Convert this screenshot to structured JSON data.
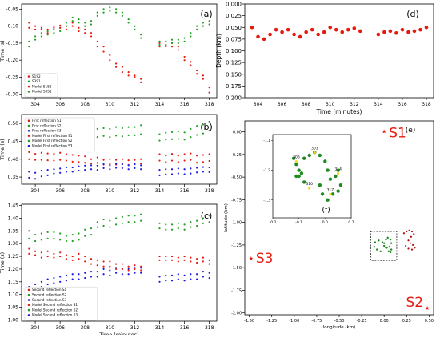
{
  "chart_data": [
    {
      "panel": "(a)",
      "type": "scatter",
      "ylabel": "Time (s)",
      "xlabel": "",
      "xlim": [
        302.9,
        318.6
      ],
      "ylim": [
        -0.31,
        -0.035
      ],
      "xticks": [
        304,
        306,
        308,
        310,
        312,
        314,
        316,
        318
      ],
      "yticks": [
        -0.3,
        -0.25,
        -0.2,
        -0.15,
        -0.1,
        -0.05
      ],
      "x": [
        303.5,
        304,
        304.5,
        305,
        305.5,
        306,
        306.5,
        307,
        307.5,
        308,
        308.5,
        309,
        309.5,
        310,
        310.5,
        311,
        311.5,
        312,
        312.5,
        314,
        314.5,
        315,
        315.5,
        316,
        316.5,
        317,
        317.5,
        318
      ],
      "series": [
        {
          "name": "S1S2",
          "color": "#e8190f",
          "values": [
            -0.09,
            -0.1,
            -0.105,
            -0.11,
            -0.1,
            -0.098,
            -0.1,
            -0.09,
            -0.105,
            -0.11,
            -0.12,
            -0.145,
            -0.16,
            -0.185,
            -0.21,
            -0.22,
            -0.235,
            -0.245,
            -0.255,
            -0.15,
            -0.155,
            -0.15,
            -0.16,
            -0.19,
            -0.205,
            -0.23,
            -0.245,
            -0.28
          ]
        },
        {
          "name": "S3S1",
          "color": "#1fa01f",
          "values": [
            -0.145,
            -0.13,
            -0.12,
            -0.115,
            -0.11,
            -0.105,
            -0.09,
            -0.075,
            -0.08,
            -0.09,
            -0.085,
            -0.06,
            -0.05,
            -0.045,
            -0.05,
            -0.06,
            -0.08,
            -0.1,
            -0.125,
            -0.145,
            -0.145,
            -0.14,
            -0.14,
            -0.135,
            -0.12,
            -0.1,
            -0.09,
            -0.085
          ]
        },
        {
          "name": "Model S1S2",
          "color": "#e8190f",
          "values": [
            -0.105,
            -0.11,
            -0.11,
            -0.12,
            -0.105,
            -0.105,
            -0.11,
            -0.1,
            -0.115,
            -0.12,
            -0.13,
            -0.16,
            -0.175,
            -0.2,
            -0.22,
            -0.235,
            -0.245,
            -0.25,
            -0.265,
            -0.16,
            -0.16,
            -0.16,
            -0.17,
            -0.2,
            -0.215,
            -0.24,
            -0.255,
            -0.295
          ]
        },
        {
          "name": "Model S3S1",
          "color": "#1fa01f",
          "values": [
            -0.16,
            -0.14,
            -0.13,
            -0.125,
            -0.12,
            -0.115,
            -0.1,
            -0.085,
            -0.09,
            -0.1,
            -0.095,
            -0.07,
            -0.06,
            -0.055,
            -0.06,
            -0.07,
            -0.09,
            -0.11,
            -0.135,
            -0.155,
            -0.155,
            -0.15,
            -0.15,
            -0.145,
            -0.13,
            -0.11,
            -0.1,
            -0.095
          ]
        }
      ]
    },
    {
      "panel": "(b)",
      "type": "scatter",
      "ylabel": "Time (s)",
      "xlabel": "",
      "xlim": [
        302.9,
        318.6
      ],
      "ylim": [
        0.33,
        0.525
      ],
      "xticks": [
        304,
        306,
        308,
        310,
        312,
        314,
        316,
        318
      ],
      "yticks": [
        0.35,
        0.4,
        0.45,
        0.5
      ],
      "x": [
        303.5,
        304,
        304.5,
        305,
        305.5,
        306,
        306.5,
        307,
        307.5,
        308,
        308.5,
        309,
        309.5,
        310,
        310.5,
        311,
        311.5,
        312,
        312.5,
        314,
        314.5,
        315,
        315.5,
        316,
        316.5,
        317,
        317.5,
        318
      ],
      "series": [
        {
          "name": "First reflection S1",
          "color": "#e8190f",
          "values": [
            0.42,
            0.415,
            0.418,
            0.416,
            0.415,
            0.418,
            0.414,
            0.412,
            0.41,
            0.408,
            0.4,
            0.405,
            0.398,
            0.4,
            0.398,
            0.4,
            0.397,
            0.398,
            0.4,
            0.414,
            0.41,
            0.415,
            0.41,
            0.414,
            0.416,
            0.41,
            0.412,
            0.414
          ]
        },
        {
          "name": "First reflection S2",
          "color": "#1fa01f",
          "values": [
            0.465,
            0.46,
            0.465,
            0.463,
            0.462,
            0.465,
            0.466,
            0.465,
            0.468,
            0.47,
            0.47,
            0.485,
            0.487,
            0.485,
            0.49,
            0.487,
            0.49,
            0.49,
            0.495,
            0.47,
            0.474,
            0.476,
            0.478,
            0.475,
            0.485,
            0.493,
            0.497,
            0.505
          ]
        },
        {
          "name": "First reflection S3",
          "color": "#1a1ae6",
          "values": [
            0.348,
            0.345,
            0.352,
            0.355,
            0.36,
            0.362,
            0.365,
            0.365,
            0.368,
            0.37,
            0.372,
            0.37,
            0.375,
            0.372,
            0.376,
            0.375,
            0.372,
            0.375,
            0.372,
            0.355,
            0.358,
            0.358,
            0.36,
            0.358,
            0.36,
            0.363,
            0.365,
            0.364
          ]
        },
        {
          "name": "Model First reflection S1",
          "color": "#e8190f",
          "values": [
            0.4,
            0.398,
            0.398,
            0.397,
            0.396,
            0.398,
            0.396,
            0.393,
            0.392,
            0.39,
            0.388,
            0.39,
            0.385,
            0.386,
            0.385,
            0.386,
            0.384,
            0.386,
            0.388,
            0.396,
            0.392,
            0.396,
            0.392,
            0.396,
            0.398,
            0.39,
            0.392,
            0.395
          ]
        },
        {
          "name": "Model First reflection S2",
          "color": "#1fa01f",
          "values": [
            0.44,
            0.445,
            0.448,
            0.445,
            0.445,
            0.447,
            0.448,
            0.447,
            0.45,
            0.45,
            0.452,
            0.462,
            0.465,
            0.462,
            0.466,
            0.464,
            0.467,
            0.467,
            0.47,
            0.452,
            0.455,
            0.456,
            0.457,
            0.455,
            0.462,
            0.468,
            0.472,
            0.48
          ]
        },
        {
          "name": "Model First reflection S3",
          "color": "#1a1ae6",
          "values": [
            0.365,
            0.362,
            0.368,
            0.37,
            0.372,
            0.374,
            0.377,
            0.377,
            0.38,
            0.382,
            0.383,
            0.382,
            0.386,
            0.383,
            0.387,
            0.386,
            0.383,
            0.386,
            0.383,
            0.37,
            0.372,
            0.372,
            0.374,
            0.372,
            0.374,
            0.376,
            0.378,
            0.377
          ]
        }
      ]
    },
    {
      "panel": "(c)",
      "type": "scatter",
      "ylabel": "Time (s)",
      "xlabel": "Time (minutes)",
      "xlim": [
        302.9,
        318.6
      ],
      "ylim": [
        0.995,
        1.455
      ],
      "xticks": [
        304,
        306,
        308,
        310,
        312,
        314,
        316,
        318
      ],
      "yticks": [
        1.0,
        1.05,
        1.1,
        1.15,
        1.2,
        1.25,
        1.3,
        1.35,
        1.4,
        1.45
      ],
      "x": [
        303.5,
        304,
        304.5,
        305,
        305.5,
        306,
        306.5,
        307,
        307.5,
        308,
        308.5,
        309,
        309.5,
        310,
        310.5,
        311,
        311.5,
        312,
        312.5,
        314,
        314.5,
        315,
        315.5,
        316,
        316.5,
        317,
        317.5,
        318
      ],
      "series": [
        {
          "name": "Second reflection S1",
          "color": "#e8190f",
          "values": [
            1.28,
            1.27,
            1.265,
            1.27,
            1.26,
            1.265,
            1.255,
            1.25,
            1.26,
            1.25,
            1.24,
            1.235,
            1.23,
            1.23,
            1.22,
            1.22,
            1.21,
            1.215,
            1.21,
            1.25,
            1.25,
            1.25,
            1.245,
            1.25,
            1.245,
            1.24,
            1.245,
            1.235
          ]
        },
        {
          "name": "Second reflection S2",
          "color": "#1fa01f",
          "values": [
            1.35,
            1.335,
            1.34,
            1.345,
            1.345,
            1.34,
            1.33,
            1.335,
            1.34,
            1.355,
            1.36,
            1.385,
            1.395,
            1.39,
            1.4,
            1.405,
            1.41,
            1.41,
            1.415,
            1.38,
            1.375,
            1.375,
            1.38,
            1.375,
            1.385,
            1.39,
            1.4,
            1.41
          ]
        },
        {
          "name": "Second reflection S3",
          "color": "#1a1ae6",
          "values": [
            1.13,
            1.14,
            1.15,
            1.16,
            1.165,
            1.17,
            1.175,
            1.18,
            1.18,
            1.185,
            1.19,
            1.19,
            1.2,
            1.195,
            1.205,
            1.2,
            1.2,
            1.205,
            1.205,
            1.17,
            1.175,
            1.175,
            1.18,
            1.175,
            1.18,
            1.18,
            1.19,
            1.185
          ]
        },
        {
          "name": "Model Second reflection S1",
          "color": "#e8190f",
          "values": [
            1.26,
            1.255,
            1.245,
            1.25,
            1.245,
            1.25,
            1.24,
            1.235,
            1.24,
            1.23,
            1.22,
            1.215,
            1.21,
            1.21,
            1.2,
            1.2,
            1.195,
            1.2,
            1.195,
            1.235,
            1.235,
            1.235,
            1.23,
            1.235,
            1.23,
            1.225,
            1.23,
            1.22
          ]
        },
        {
          "name": "Model Second reflection S2",
          "color": "#1fa01f",
          "values": [
            1.32,
            1.31,
            1.315,
            1.32,
            1.32,
            1.315,
            1.31,
            1.31,
            1.315,
            1.33,
            1.335,
            1.365,
            1.37,
            1.365,
            1.375,
            1.38,
            1.385,
            1.385,
            1.39,
            1.36,
            1.355,
            1.355,
            1.36,
            1.355,
            1.365,
            1.37,
            1.38,
            1.385
          ]
        },
        {
          "name": "Model Second reflection S3",
          "color": "#1a1ae6",
          "values": [
            1.11,
            1.12,
            1.13,
            1.14,
            1.145,
            1.15,
            1.155,
            1.16,
            1.16,
            1.165,
            1.17,
            1.17,
            1.18,
            1.175,
            1.185,
            1.18,
            1.18,
            1.185,
            1.185,
            1.15,
            1.155,
            1.155,
            1.16,
            1.155,
            1.16,
            1.16,
            1.17,
            1.165
          ]
        }
      ]
    },
    {
      "panel": "(d)",
      "type": "scatter",
      "ylabel": "Depth (km)",
      "xlabel": "Time (minutes)",
      "xlim": [
        302.9,
        318.6
      ],
      "ylim": [
        0.2,
        0.0
      ],
      "xticks": [
        304,
        306,
        308,
        310,
        312,
        314,
        316,
        318
      ],
      "yticks": [
        0.0,
        0.025,
        0.05,
        0.075,
        0.1,
        0.125,
        0.15,
        0.175,
        0.2
      ],
      "x": [
        303.5,
        304,
        304.5,
        305,
        305.5,
        306,
        306.5,
        307,
        307.5,
        308,
        308.5,
        309,
        309.5,
        310,
        310.5,
        311,
        311.5,
        312,
        312.5,
        314,
        314.5,
        315,
        315.5,
        316,
        316.5,
        317,
        317.5,
        318
      ],
      "series": [
        {
          "name": "",
          "color": "#e8190f",
          "values": [
            0.05,
            0.07,
            0.075,
            0.065,
            0.055,
            0.06,
            0.055,
            0.065,
            0.07,
            0.06,
            0.055,
            0.065,
            0.06,
            0.05,
            0.055,
            0.06,
            0.055,
            0.052,
            0.058,
            0.065,
            0.06,
            0.058,
            0.062,
            0.055,
            0.06,
            0.058,
            0.055,
            0.05
          ]
        }
      ]
    },
    {
      "panel": "(e)",
      "type": "scatter",
      "ylabel": "latitude (km)",
      "xlabel": "longitude (km)",
      "xlim": [
        -1.55,
        0.55
      ],
      "ylim": [
        -2.02,
        0.12
      ],
      "xticks": [
        -1.5,
        -1.25,
        -1.0,
        -0.75,
        -0.5,
        -0.25,
        0.0,
        0.25,
        0.5
      ],
      "yticks": [
        0.0,
        -0.25,
        -0.5,
        -0.75,
        -1.0,
        -1.25,
        -1.5,
        -1.75,
        -2.0
      ],
      "stations": [
        {
          "name": "S1",
          "x": 0.0,
          "y": 0.0
        },
        {
          "name": "S2",
          "x": 0.48,
          "y": -1.95
        },
        {
          "name": "S3",
          "x": -1.48,
          "y": -1.4
        }
      ],
      "track_green": {
        "x": [
          -0.04,
          -0.08,
          -0.11,
          -0.1,
          -0.06,
          -0.02,
          0.0,
          0.03,
          0.06,
          0.08,
          0.07,
          0.04,
          0.02,
          0.0,
          0.02,
          0.05,
          0.07,
          0.08
        ],
        "y": [
          -1.32,
          -1.3,
          -1.27,
          -1.22,
          -1.2,
          -1.22,
          -1.26,
          -1.28,
          -1.27,
          -1.23,
          -1.19,
          -1.17,
          -1.19,
          -1.23,
          -1.28,
          -1.32,
          -1.33,
          -1.3
        ]
      },
      "track_red": {
        "x": [
          0.22,
          0.25,
          0.28,
          0.31,
          0.33,
          0.3,
          0.27,
          0.29,
          0.32,
          0.34,
          0.31,
          0.27,
          0.24
        ],
        "y": [
          -1.12,
          -1.1,
          -1.09,
          -1.1,
          -1.13,
          -1.16,
          -1.2,
          -1.23,
          -1.25,
          -1.28,
          -1.3,
          -1.29,
          -1.26
        ]
      }
    },
    {
      "panel": "(f)",
      "type": "scatter",
      "xlim": [
        -0.2,
        0.1
      ],
      "ylim": [
        -1.36,
        -1.08
      ],
      "xticks": [
        -0.2,
        -0.1,
        0.0,
        0.1
      ],
      "yticks": [
        -1.1,
        -1.2,
        -1.3
      ],
      "points": {
        "x": [
          -0.12,
          -0.11,
          -0.1,
          -0.09,
          -0.08,
          -0.06,
          -0.04,
          -0.02,
          0.0,
          0.01,
          0.02,
          0.04,
          0.05,
          0.06,
          0.05,
          0.03,
          0.01,
          -0.01,
          -0.02,
          -0.08,
          -0.1,
          -0.11
        ],
        "y": [
          -1.16,
          -1.18,
          -1.2,
          -1.21,
          -1.16,
          -1.15,
          -1.14,
          -1.15,
          -1.17,
          -1.2,
          -1.23,
          -1.22,
          -1.2,
          -1.25,
          -1.27,
          -1.28,
          -1.3,
          -1.28,
          -1.25,
          -1.24,
          -1.22,
          -1.22
        ]
      },
      "labels": [
        {
          "text": "303",
          "x": -0.04,
          "y": -1.13
        },
        {
          "text": "306",
          "x": -0.11,
          "y": -1.16
        },
        {
          "text": "314",
          "x": 0.05,
          "y": -1.2
        },
        {
          "text": "310",
          "x": -0.06,
          "y": -1.25
        },
        {
          "text": "317",
          "x": 0.02,
          "y": -1.27
        }
      ]
    }
  ]
}
